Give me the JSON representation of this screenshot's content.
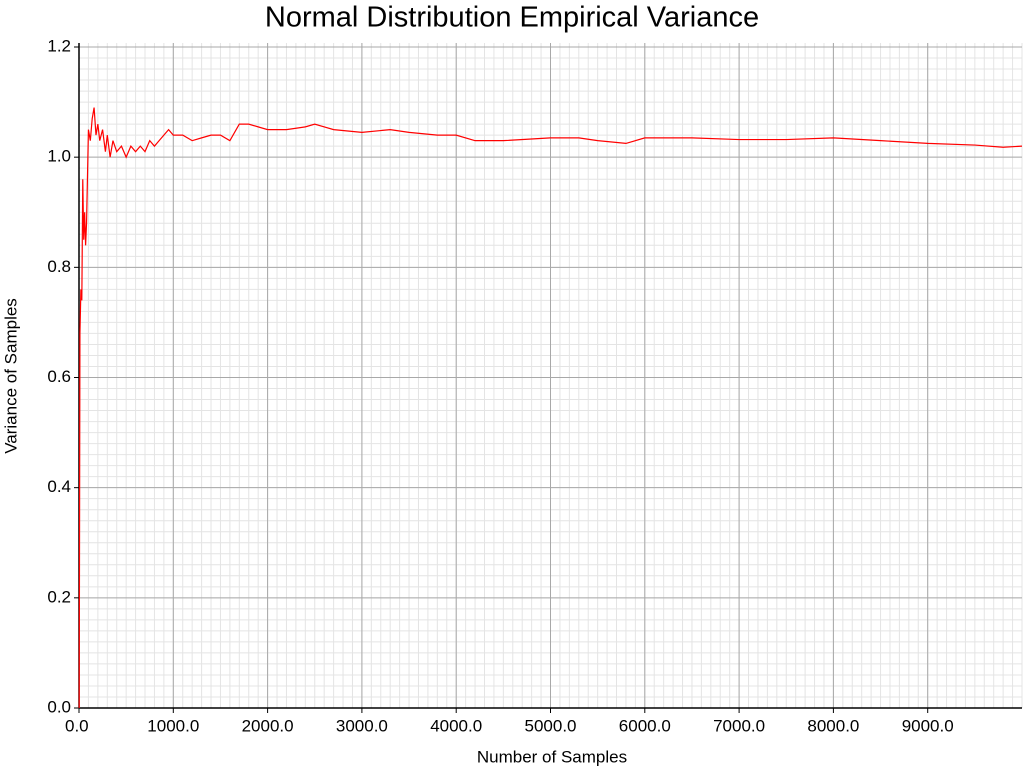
{
  "chart_data": {
    "type": "line",
    "title": "Normal Distribution Empirical Variance",
    "x_label": "Number of Samples",
    "y_label": "Variance of Samples",
    "color": "#ff0000",
    "grid": true,
    "minor_grid": true,
    "xlim": [
      0,
      10000
    ],
    "ylim": [
      0,
      1.2
    ],
    "xticks": [
      {
        "value": 0,
        "label": "0.0"
      },
      {
        "value": 1000,
        "label": "1000.0"
      },
      {
        "value": 2000,
        "label": "2000.0"
      },
      {
        "value": 3000,
        "label": "3000.0"
      },
      {
        "value": 4000,
        "label": "4000.0"
      },
      {
        "value": 5000,
        "label": "5000.0"
      },
      {
        "value": 6000,
        "label": "6000.0"
      },
      {
        "value": 7000,
        "label": "7000.0"
      },
      {
        "value": 8000,
        "label": "8000.0"
      },
      {
        "value": 9000,
        "label": "9000.0"
      }
    ],
    "yticks": [
      {
        "value": 0,
        "label": "0.0"
      },
      0.2,
      0.4,
      0.6,
      0.8,
      {
        "value": 1,
        "label": "1.0"
      },
      1.2
    ],
    "x": [
      2,
      10,
      20,
      30,
      40,
      50,
      60,
      70,
      80,
      100,
      120,
      140,
      160,
      180,
      200,
      220,
      250,
      280,
      300,
      330,
      360,
      400,
      450,
      500,
      550,
      600,
      650,
      700,
      750,
      800,
      850,
      900,
      950,
      1000,
      1100,
      1200,
      1300,
      1400,
      1500,
      1600,
      1700,
      1800,
      1900,
      2000,
      2200,
      2400,
      2500,
      2700,
      3000,
      3300,
      3500,
      3800,
      4000,
      4200,
      4500,
      5000,
      5300,
      5500,
      5800,
      6000,
      6500,
      7000,
      7500,
      8000,
      8500,
      9000,
      9500,
      9800,
      10000
    ],
    "values": [
      0.0,
      0.68,
      0.76,
      0.74,
      0.96,
      0.85,
      0.9,
      0.84,
      0.88,
      1.05,
      1.03,
      1.07,
      1.09,
      1.04,
      1.06,
      1.03,
      1.05,
      1.01,
      1.04,
      1.0,
      1.03,
      1.01,
      1.02,
      1.0,
      1.02,
      1.01,
      1.02,
      1.01,
      1.03,
      1.02,
      1.03,
      1.04,
      1.05,
      1.04,
      1.04,
      1.03,
      1.035,
      1.04,
      1.04,
      1.03,
      1.06,
      1.06,
      1.055,
      1.05,
      1.05,
      1.055,
      1.06,
      1.05,
      1.045,
      1.05,
      1.045,
      1.04,
      1.04,
      1.03,
      1.03,
      1.035,
      1.035,
      1.03,
      1.025,
      1.035,
      1.035,
      1.032,
      1.032,
      1.035,
      1.03,
      1.025,
      1.022,
      1.018,
      1.02
    ]
  }
}
